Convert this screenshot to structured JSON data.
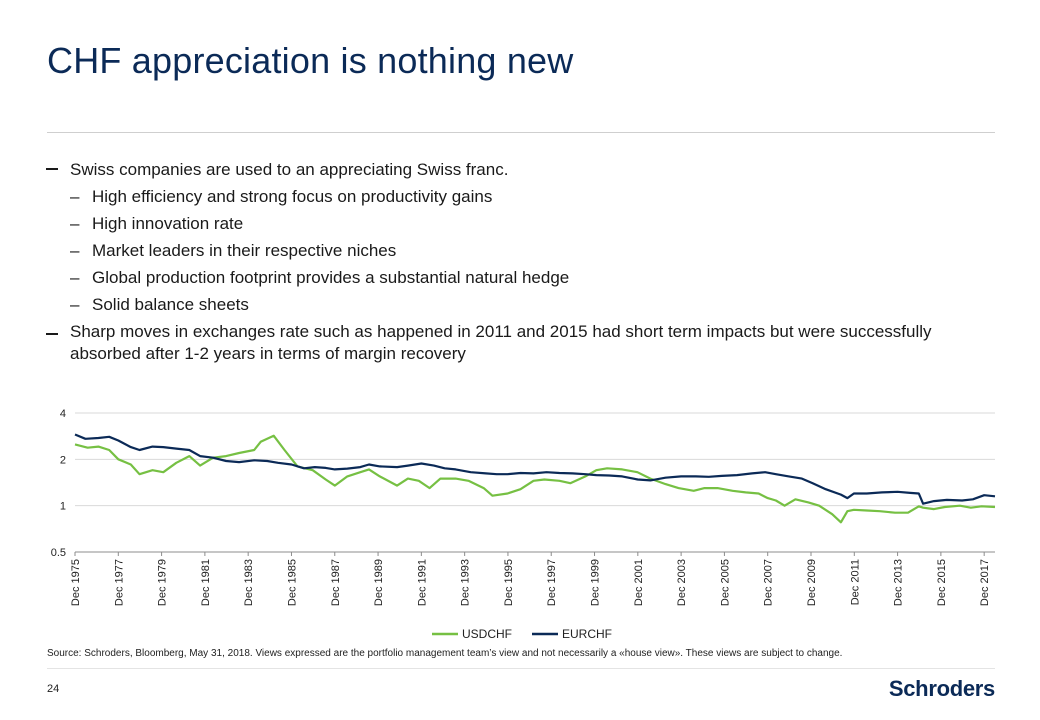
{
  "title": "CHF appreciation is nothing new",
  "bullets": [
    {
      "text": "Swiss companies are used to an appreciating Swiss franc.",
      "subs": [
        "High efficiency and strong focus on productivity gains",
        "High innovation rate",
        "Market leaders in their respective niches",
        "Global production footprint provides a substantial natural hedge",
        "Solid balance sheets"
      ]
    },
    {
      "text": "Sharp moves in exchanges rate such as happened in 2011 and 2015 had short term impacts but were successfully absorbed after 1-2 years in terms of margin recovery",
      "subs": []
    }
  ],
  "source": "Source: Schroders, Bloomberg, May 31, 2018. Views expressed are the portfolio management team’s view and not necessarily a «house view». These views are subject to change.",
  "page_number": "24",
  "logo": "Schroders",
  "colors": {
    "usdchf": "#76c043",
    "eurchf": "#0b2a57",
    "title": "#0b2a57"
  },
  "chart_data": {
    "type": "line",
    "title": "",
    "xlabel": "",
    "ylabel": "",
    "yscale": "log",
    "ylim": [
      0.5,
      4
    ],
    "yticks": [
      0.5,
      1,
      2,
      4
    ],
    "ytick_labels": [
      "0.5",
      "1",
      "2",
      "4"
    ],
    "xlim": [
      1975.92,
      2018.42
    ],
    "xticks": [
      1975.92,
      1977.92,
      1979.92,
      1981.92,
      1983.92,
      1985.92,
      1987.92,
      1989.92,
      1991.92,
      1993.92,
      1995.92,
      1997.92,
      1999.92,
      2001.92,
      2003.92,
      2005.92,
      2007.92,
      2009.92,
      2011.92,
      2013.92,
      2015.92,
      2017.92
    ],
    "xtick_labels": [
      "Dec 1975",
      "Dec 1977",
      "Dec 1979",
      "Dec 1981",
      "Dec 1983",
      "Dec 1985",
      "Dec 1987",
      "Dec 1989",
      "Dec 1991",
      "Dec 1993",
      "Dec 1995",
      "Dec 1997",
      "Dec 1999",
      "Dec 2001",
      "Dec 2003",
      "Dec 2005",
      "Dec 2007",
      "Dec 2009",
      "Dec 2011",
      "Dec 2013",
      "Dec 2015",
      "Dec 2017"
    ],
    "grid": true,
    "legend": "bottom-center",
    "series": [
      {
        "name": "USDCHF",
        "color": "#76c043",
        "x": [
          1975.92,
          1976.5,
          1977.0,
          1977.5,
          1977.92,
          1978.5,
          1978.9,
          1979.5,
          1980.0,
          1980.6,
          1981.2,
          1981.7,
          1982.3,
          1982.9,
          1983.5,
          1984.2,
          1984.5,
          1985.1,
          1985.6,
          1986.2,
          1986.9,
          1987.5,
          1987.92,
          1988.5,
          1989.1,
          1989.5,
          1990.0,
          1990.8,
          1991.3,
          1991.8,
          1992.3,
          1992.8,
          1993.5,
          1994.1,
          1994.8,
          1995.2,
          1995.9,
          1996.5,
          1997.1,
          1997.6,
          1998.3,
          1998.8,
          1999.5,
          2000.0,
          2000.5,
          2001.2,
          2001.9,
          2002.5,
          2003.2,
          2003.8,
          2004.5,
          2005.0,
          2005.6,
          2006.3,
          2006.9,
          2007.5,
          2007.92,
          2008.3,
          2008.7,
          2009.2,
          2009.8,
          2010.3,
          2010.9,
          2011.3,
          2011.6,
          2011.9,
          2012.5,
          2013.1,
          2013.8,
          2014.4,
          2014.9,
          2015.1,
          2015.6,
          2016.1,
          2016.8,
          2017.3,
          2017.8,
          2018.42
        ],
        "values": [
          2.5,
          2.38,
          2.42,
          2.3,
          2.0,
          1.85,
          1.6,
          1.7,
          1.65,
          1.9,
          2.1,
          1.82,
          2.05,
          2.1,
          2.2,
          2.3,
          2.6,
          2.85,
          2.3,
          1.8,
          1.7,
          1.48,
          1.35,
          1.55,
          1.65,
          1.72,
          1.55,
          1.35,
          1.5,
          1.45,
          1.3,
          1.5,
          1.5,
          1.45,
          1.3,
          1.16,
          1.2,
          1.28,
          1.45,
          1.48,
          1.45,
          1.4,
          1.55,
          1.7,
          1.75,
          1.72,
          1.65,
          1.5,
          1.38,
          1.3,
          1.25,
          1.3,
          1.3,
          1.25,
          1.22,
          1.2,
          1.12,
          1.08,
          1.0,
          1.1,
          1.05,
          1.0,
          0.88,
          0.78,
          0.92,
          0.94,
          0.93,
          0.92,
          0.9,
          0.9,
          0.99,
          0.97,
          0.95,
          0.98,
          1.0,
          0.97,
          0.99,
          0.98
        ]
      },
      {
        "name": "EURCHF",
        "color": "#0b2a57",
        "x": [
          1975.92,
          1976.4,
          1977.0,
          1977.5,
          1977.92,
          1978.5,
          1978.9,
          1979.5,
          1980.0,
          1980.6,
          1981.2,
          1981.7,
          1982.3,
          1982.9,
          1983.5,
          1984.2,
          1984.8,
          1985.3,
          1985.92,
          1986.5,
          1987.0,
          1987.5,
          1987.92,
          1988.5,
          1989.1,
          1989.5,
          1990.0,
          1990.8,
          1991.3,
          1991.92,
          1992.5,
          1993.0,
          1993.5,
          1994.2,
          1994.9,
          1995.4,
          1995.9,
          1996.5,
          1997.1,
          1997.7,
          1998.3,
          1998.9,
          1999.5,
          2000.0,
          2000.6,
          2001.2,
          2001.92,
          2002.5,
          2003.2,
          2003.92,
          2004.6,
          2005.2,
          2005.8,
          2006.5,
          2007.2,
          2007.8,
          2008.3,
          2008.9,
          2009.5,
          2010.0,
          2010.6,
          2011.3,
          2011.6,
          2011.9,
          2012.5,
          2013.2,
          2013.92,
          2014.5,
          2014.9,
          2015.1,
          2015.6,
          2016.2,
          2016.9,
          2017.4,
          2017.92,
          2018.42
        ],
        "values": [
          2.9,
          2.72,
          2.75,
          2.8,
          2.65,
          2.4,
          2.3,
          2.42,
          2.4,
          2.35,
          2.3,
          2.1,
          2.05,
          1.95,
          1.92,
          1.97,
          1.95,
          1.9,
          1.85,
          1.75,
          1.78,
          1.76,
          1.72,
          1.74,
          1.78,
          1.85,
          1.8,
          1.78,
          1.82,
          1.88,
          1.82,
          1.75,
          1.72,
          1.65,
          1.62,
          1.6,
          1.6,
          1.63,
          1.62,
          1.65,
          1.63,
          1.62,
          1.6,
          1.58,
          1.57,
          1.55,
          1.48,
          1.46,
          1.52,
          1.55,
          1.55,
          1.54,
          1.56,
          1.58,
          1.62,
          1.65,
          1.6,
          1.55,
          1.5,
          1.4,
          1.28,
          1.18,
          1.12,
          1.2,
          1.2,
          1.22,
          1.23,
          1.21,
          1.2,
          1.03,
          1.07,
          1.09,
          1.08,
          1.1,
          1.17,
          1.15
        ]
      }
    ]
  }
}
